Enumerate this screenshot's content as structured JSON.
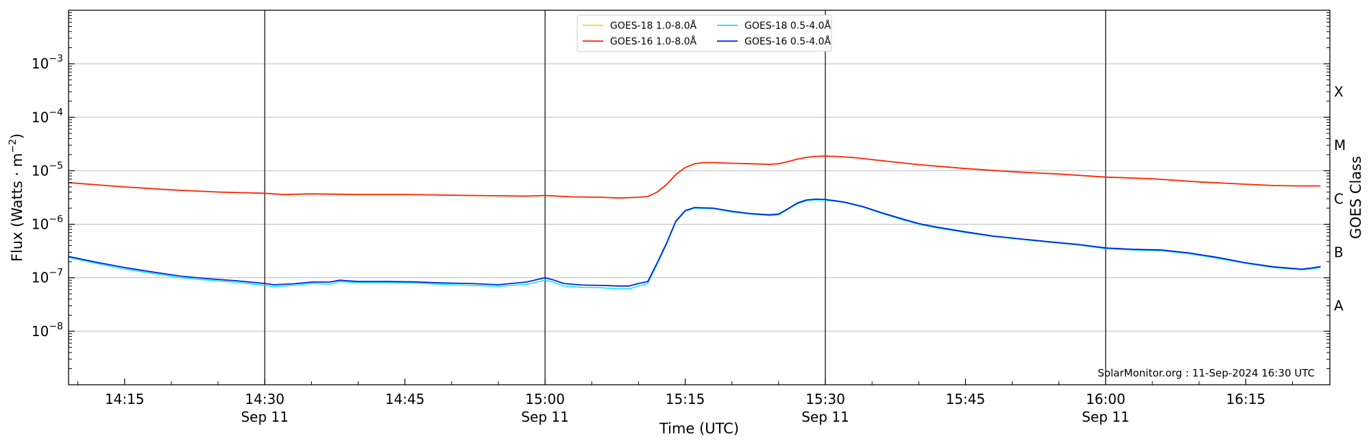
{
  "chart_data": {
    "type": "line",
    "title": "",
    "xlabel": "Time (UTC)",
    "ylabel": "Flux (Watts · m",
    "ylabel_sup": "−2",
    "ylabel_close": ")",
    "y2label": "GOES Class",
    "y_scale": "log",
    "xlim": [
      "14:09",
      "16:24"
    ],
    "ylim": [
      1e-09,
      0.01
    ],
    "grid": "horizontal at decades",
    "x_ticks": [
      {
        "time": "14:15",
        "label": "14:15",
        "date": ""
      },
      {
        "time": "14:30",
        "label": "14:30",
        "date": "Sep 11"
      },
      {
        "time": "14:45",
        "label": "14:45",
        "date": ""
      },
      {
        "time": "15:00",
        "label": "15:00",
        "date": "Sep 11"
      },
      {
        "time": "15:15",
        "label": "15:15",
        "date": ""
      },
      {
        "time": "15:30",
        "label": "15:30",
        "date": "Sep 11"
      },
      {
        "time": "15:45",
        "label": "15:45",
        "date": ""
      },
      {
        "time": "16:00",
        "label": "16:00",
        "date": "Sep 11"
      },
      {
        "time": "16:15",
        "label": "16:15",
        "date": ""
      }
    ],
    "vertical_lines": [
      "14:30",
      "15:00",
      "15:30",
      "16:00"
    ],
    "y_ticks": [
      {
        "value": 1e-08,
        "base": "10",
        "exp": "−8"
      },
      {
        "value": 1e-07,
        "base": "10",
        "exp": "−7"
      },
      {
        "value": 1e-06,
        "base": "10",
        "exp": "−6"
      },
      {
        "value": 1e-05,
        "base": "10",
        "exp": "−5"
      },
      {
        "value": 0.0001,
        "base": "10",
        "exp": "−4"
      },
      {
        "value": 0.001,
        "base": "10",
        "exp": "−3"
      }
    ],
    "goes_classes": [
      {
        "label": "A",
        "value": 3e-08
      },
      {
        "label": "B",
        "value": 3e-07
      },
      {
        "label": "C",
        "value": 3e-06
      },
      {
        "label": "M",
        "value": 3e-05
      },
      {
        "label": "X",
        "value": 0.0003
      }
    ],
    "legend": {
      "placement": "top-center",
      "entries": [
        {
          "name": "GOES-18 1.0-8.0Å",
          "color": "#ffd700"
        },
        {
          "name": "GOES-16 1.0-8.0Å",
          "color": "#ff2200"
        },
        {
          "name": "GOES-18 0.5-4.0Å",
          "color": "#00e5ff"
        },
        {
          "name": "GOES-16 0.5-4.0Å",
          "color": "#0022dd"
        }
      ]
    },
    "series": [
      {
        "name": "GOES-18 1.0-8.0Å",
        "color": "#ffd700",
        "width": 1.5,
        "x": [
          "14:09",
          "14:15",
          "14:20",
          "14:25",
          "14:30",
          "14:32",
          "14:35",
          "14:40",
          "14:45",
          "14:50",
          "14:55",
          "14:58",
          "15:00",
          "15:03",
          "15:06",
          "15:08",
          "15:10",
          "15:11",
          "15:12",
          "15:13",
          "15:14",
          "15:15",
          "15:16",
          "15:17",
          "15:18",
          "15:20",
          "15:22",
          "15:24",
          "15:25",
          "15:26",
          "15:27",
          "15:28",
          "15:29",
          "15:30",
          "15:31",
          "15:33",
          "15:36",
          "15:40",
          "15:45",
          "15:50",
          "15:55",
          "16:00",
          "16:05",
          "16:10",
          "16:15",
          "16:18",
          "16:21",
          "16:23"
        ],
        "y": [
          6e-06,
          5e-06,
          4.4e-06,
          4e-06,
          3.8e-06,
          3.6e-06,
          3.7e-06,
          3.6e-06,
          3.6e-06,
          3.5e-06,
          3.4e-06,
          3.35e-06,
          3.45e-06,
          3.25e-06,
          3.2e-06,
          3.1e-06,
          3.2e-06,
          3.3e-06,
          4e-06,
          5.5e-06,
          8.5e-06,
          1.15e-05,
          1.35e-05,
          1.42e-05,
          1.42e-05,
          1.38e-05,
          1.35e-05,
          1.32e-05,
          1.35e-05,
          1.48e-05,
          1.65e-05,
          1.78e-05,
          1.86e-05,
          1.88e-05,
          1.86e-05,
          1.77e-05,
          1.55e-05,
          1.3e-05,
          1.1e-05,
          9.6e-06,
          8.7e-06,
          7.6e-06,
          7.1e-06,
          6.2e-06,
          5.6e-06,
          5.3e-06,
          5.2e-06,
          5.2e-06
        ]
      },
      {
        "name": "GOES-16 1.0-8.0Å",
        "color": "#ff2200",
        "width": 1.8,
        "x": [
          "14:09",
          "14:15",
          "14:20",
          "14:25",
          "14:30",
          "14:32",
          "14:35",
          "14:40",
          "14:45",
          "14:50",
          "14:55",
          "14:58",
          "15:00",
          "15:03",
          "15:06",
          "15:08",
          "15:10",
          "15:11",
          "15:12",
          "15:13",
          "15:14",
          "15:15",
          "15:16",
          "15:17",
          "15:18",
          "15:20",
          "15:22",
          "15:24",
          "15:25",
          "15:26",
          "15:27",
          "15:28",
          "15:29",
          "15:30",
          "15:31",
          "15:33",
          "15:36",
          "15:40",
          "15:45",
          "15:50",
          "15:55",
          "16:00",
          "16:05",
          "16:10",
          "16:15",
          "16:18",
          "16:21",
          "16:23"
        ],
        "y": [
          6e-06,
          5e-06,
          4.4e-06,
          4e-06,
          3.8e-06,
          3.6e-06,
          3.7e-06,
          3.6e-06,
          3.6e-06,
          3.5e-06,
          3.4e-06,
          3.35e-06,
          3.45e-06,
          3.25e-06,
          3.2e-06,
          3.1e-06,
          3.2e-06,
          3.3e-06,
          4e-06,
          5.5e-06,
          8.5e-06,
          1.15e-05,
          1.35e-05,
          1.42e-05,
          1.42e-05,
          1.38e-05,
          1.35e-05,
          1.32e-05,
          1.35e-05,
          1.48e-05,
          1.65e-05,
          1.78e-05,
          1.86e-05,
          1.88e-05,
          1.86e-05,
          1.77e-05,
          1.55e-05,
          1.3e-05,
          1.1e-05,
          9.6e-06,
          8.7e-06,
          7.6e-06,
          7.1e-06,
          6.2e-06,
          5.6e-06,
          5.3e-06,
          5.2e-06,
          5.2e-06
        ]
      },
      {
        "name": "GOES-18 0.5-4.0Å",
        "color": "#00e5ff",
        "width": 1.5,
        "x": [
          "14:09",
          "14:12",
          "14:15",
          "14:18",
          "14:21",
          "14:24",
          "14:27",
          "14:30",
          "14:31",
          "14:33",
          "14:35",
          "14:37",
          "14:38",
          "14:40",
          "14:43",
          "14:46",
          "14:49",
          "14:52",
          "14:55",
          "14:58",
          "15:00",
          "15:01",
          "15:02",
          "15:04",
          "15:06",
          "15:08",
          "15:09",
          "15:10",
          "15:11",
          "15:12",
          "15:13",
          "15:14",
          "15:15",
          "15:16",
          "15:18",
          "15:20",
          "15:22",
          "15:24",
          "15:25",
          "15:26",
          "15:27",
          "15:28",
          "15:29",
          "15:30",
          "15:31",
          "15:32",
          "15:34",
          "15:36",
          "15:38",
          "15:40",
          "15:42",
          "15:45",
          "15:48",
          "15:51",
          "15:54",
          "15:57",
          "16:00",
          "16:03",
          "16:06",
          "16:09",
          "16:12",
          "16:15",
          "16:18",
          "16:21",
          "16:22",
          "16:23"
        ],
        "y": [
          2.4e-07,
          1.85e-07,
          1.45e-07,
          1.2e-07,
          1e-07,
          9e-08,
          8.2e-08,
          7.2e-08,
          6.8e-08,
          7.2e-08,
          7.8e-08,
          7.6e-08,
          8.5e-08,
          8e-08,
          8e-08,
          8e-08,
          7.5e-08,
          7.2e-08,
          6.9e-08,
          7.5e-08,
          9e-08,
          8.2e-08,
          7e-08,
          6.6e-08,
          6.5e-08,
          6.2e-08,
          6.2e-08,
          7e-08,
          7.8e-08,
          1.8e-07,
          4.2e-07,
          1.1e-06,
          1.75e-06,
          2e-06,
          1.95e-06,
          1.7e-06,
          1.55e-06,
          1.46e-06,
          1.5e-06,
          1.9e-06,
          2.4e-06,
          2.75e-06,
          2.85e-06,
          2.82e-06,
          2.7e-06,
          2.55e-06,
          2.1e-06,
          1.6e-06,
          1.25e-06,
          1e-06,
          8.5e-07,
          7e-07,
          5.9e-07,
          5.2e-07,
          4.6e-07,
          4.1e-07,
          3.5e-07,
          3.3e-07,
          3.2e-07,
          2.8e-07,
          2.3e-07,
          1.85e-07,
          1.55e-07,
          1.4e-07,
          1.45e-07,
          1.55e-07
        ]
      },
      {
        "name": "GOES-16 0.5-4.0Å",
        "color": "#0022dd",
        "width": 1.8,
        "x": [
          "14:09",
          "14:12",
          "14:15",
          "14:18",
          "14:21",
          "14:24",
          "14:27",
          "14:30",
          "14:31",
          "14:33",
          "14:35",
          "14:37",
          "14:38",
          "14:40",
          "14:43",
          "14:46",
          "14:49",
          "14:52",
          "14:55",
          "14:58",
          "15:00",
          "15:01",
          "15:02",
          "15:04",
          "15:06",
          "15:08",
          "15:09",
          "15:10",
          "15:11",
          "15:12",
          "15:13",
          "15:14",
          "15:15",
          "15:16",
          "15:18",
          "15:20",
          "15:22",
          "15:24",
          "15:25",
          "15:26",
          "15:27",
          "15:28",
          "15:29",
          "15:30",
          "15:31",
          "15:32",
          "15:34",
          "15:36",
          "15:38",
          "15:40",
          "15:42",
          "15:45",
          "15:48",
          "15:51",
          "15:54",
          "15:57",
          "16:00",
          "16:03",
          "16:06",
          "16:09",
          "16:12",
          "16:15",
          "16:18",
          "16:21",
          "16:22",
          "16:23"
        ],
        "y": [
          2.5e-07,
          1.95e-07,
          1.55e-07,
          1.28e-07,
          1.07e-07,
          9.6e-08,
          8.8e-08,
          7.8e-08,
          7.4e-08,
          7.7e-08,
          8.3e-08,
          8.3e-08,
          9e-08,
          8.5e-08,
          8.5e-08,
          8.4e-08,
          8e-08,
          7.8e-08,
          7.4e-08,
          8.3e-08,
          1e-07,
          9e-08,
          7.8e-08,
          7.3e-08,
          7.2e-08,
          7e-08,
          7e-08,
          7.8e-08,
          8.5e-08,
          1.9e-07,
          4.4e-07,
          1.15e-06,
          1.8e-06,
          2.05e-06,
          2e-06,
          1.75e-06,
          1.58e-06,
          1.5e-06,
          1.55e-06,
          1.95e-06,
          2.5e-06,
          2.85e-06,
          2.95e-06,
          2.9e-06,
          2.75e-06,
          2.6e-06,
          2.15e-06,
          1.65e-06,
          1.3e-06,
          1.03e-06,
          8.8e-07,
          7.2e-07,
          6e-07,
          5.3e-07,
          4.7e-07,
          4.2e-07,
          3.6e-07,
          3.4e-07,
          3.3e-07,
          2.9e-07,
          2.4e-07,
          1.9e-07,
          1.6e-07,
          1.45e-07,
          1.52e-07,
          1.62e-07
        ]
      }
    ],
    "credit": "SolarMonitor.org : 11-Sep-2024 16:30 UTC"
  }
}
